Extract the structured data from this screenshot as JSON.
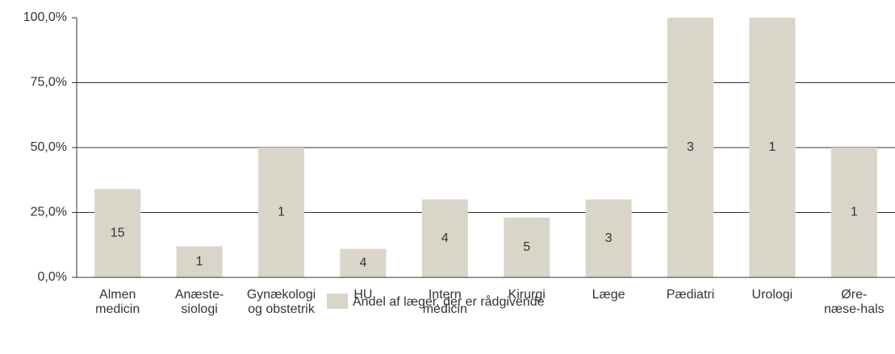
{
  "chart_data": {
    "type": "bar",
    "categories": [
      [
        "Almen",
        "medicin"
      ],
      [
        "Anæste-",
        "siologi"
      ],
      [
        "Gynækologi",
        "og obstetrik"
      ],
      [
        "HU"
      ],
      [
        "Intern",
        "medicin"
      ],
      [
        "Kirurgi"
      ],
      [
        "Læge"
      ],
      [
        "Pædiatri"
      ],
      [
        "Urologi"
      ],
      [
        "Øre-",
        "næse-hals"
      ]
    ],
    "series": [
      {
        "name": "Andel af læger, der er rådgivende",
        "color": "#d9d5c8",
        "values": [
          34,
          12,
          50,
          11,
          30,
          23,
          30,
          100,
          100,
          50
        ]
      }
    ],
    "bar_labels": [
      "15",
      "1",
      "1",
      "4",
      "4",
      "5",
      "3",
      "3",
      "1",
      "1"
    ],
    "ylim": [
      0,
      100
    ],
    "yticks": [
      {
        "value": 0,
        "label": "0,0%"
      },
      {
        "value": 25,
        "label": "25,0%"
      },
      {
        "value": 50,
        "label": "50,0%"
      },
      {
        "value": 75,
        "label": "75,0%"
      },
      {
        "value": 100,
        "label": "100,0%"
      }
    ],
    "grid": true
  }
}
